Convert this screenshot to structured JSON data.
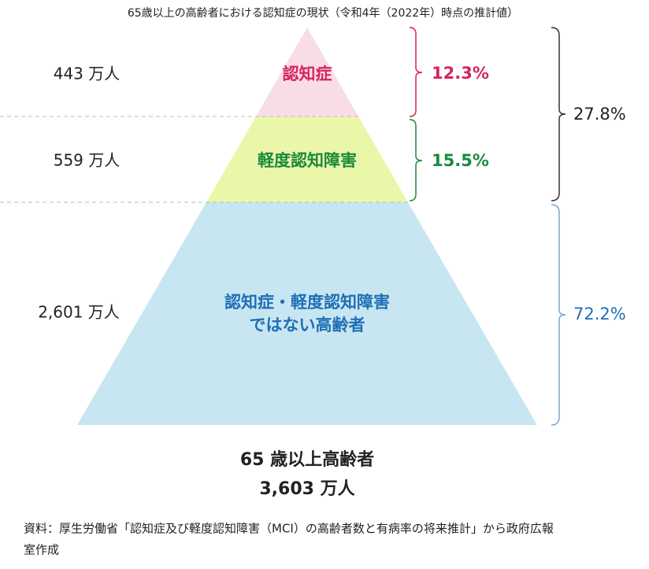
{
  "title": "65歳以上の高齢者における認知症の現状（令和4年（2022年）時点の推計値）",
  "layers": [
    {
      "name_lines": [
        "認知症"
      ],
      "count": "443 万人",
      "percent": "12.3%"
    },
    {
      "name_lines": [
        "軽度認知障害"
      ],
      "count": "559 万人",
      "percent": "15.5%"
    },
    {
      "name_lines": [
        "認知症・軽度認知障害",
        "ではない高齢者"
      ],
      "count": "2,601 万人",
      "percent": "72.2%"
    }
  ],
  "group_percent": "27.8%",
  "total": {
    "label": "65 歳以上高齢者",
    "count": "3,603 万人"
  },
  "source": [
    "資料：厚生労働省「認知症及び軽度認知障害（MCI）の高齢者数と有病率の将来推計」から政府広報",
    "室作成"
  ]
}
